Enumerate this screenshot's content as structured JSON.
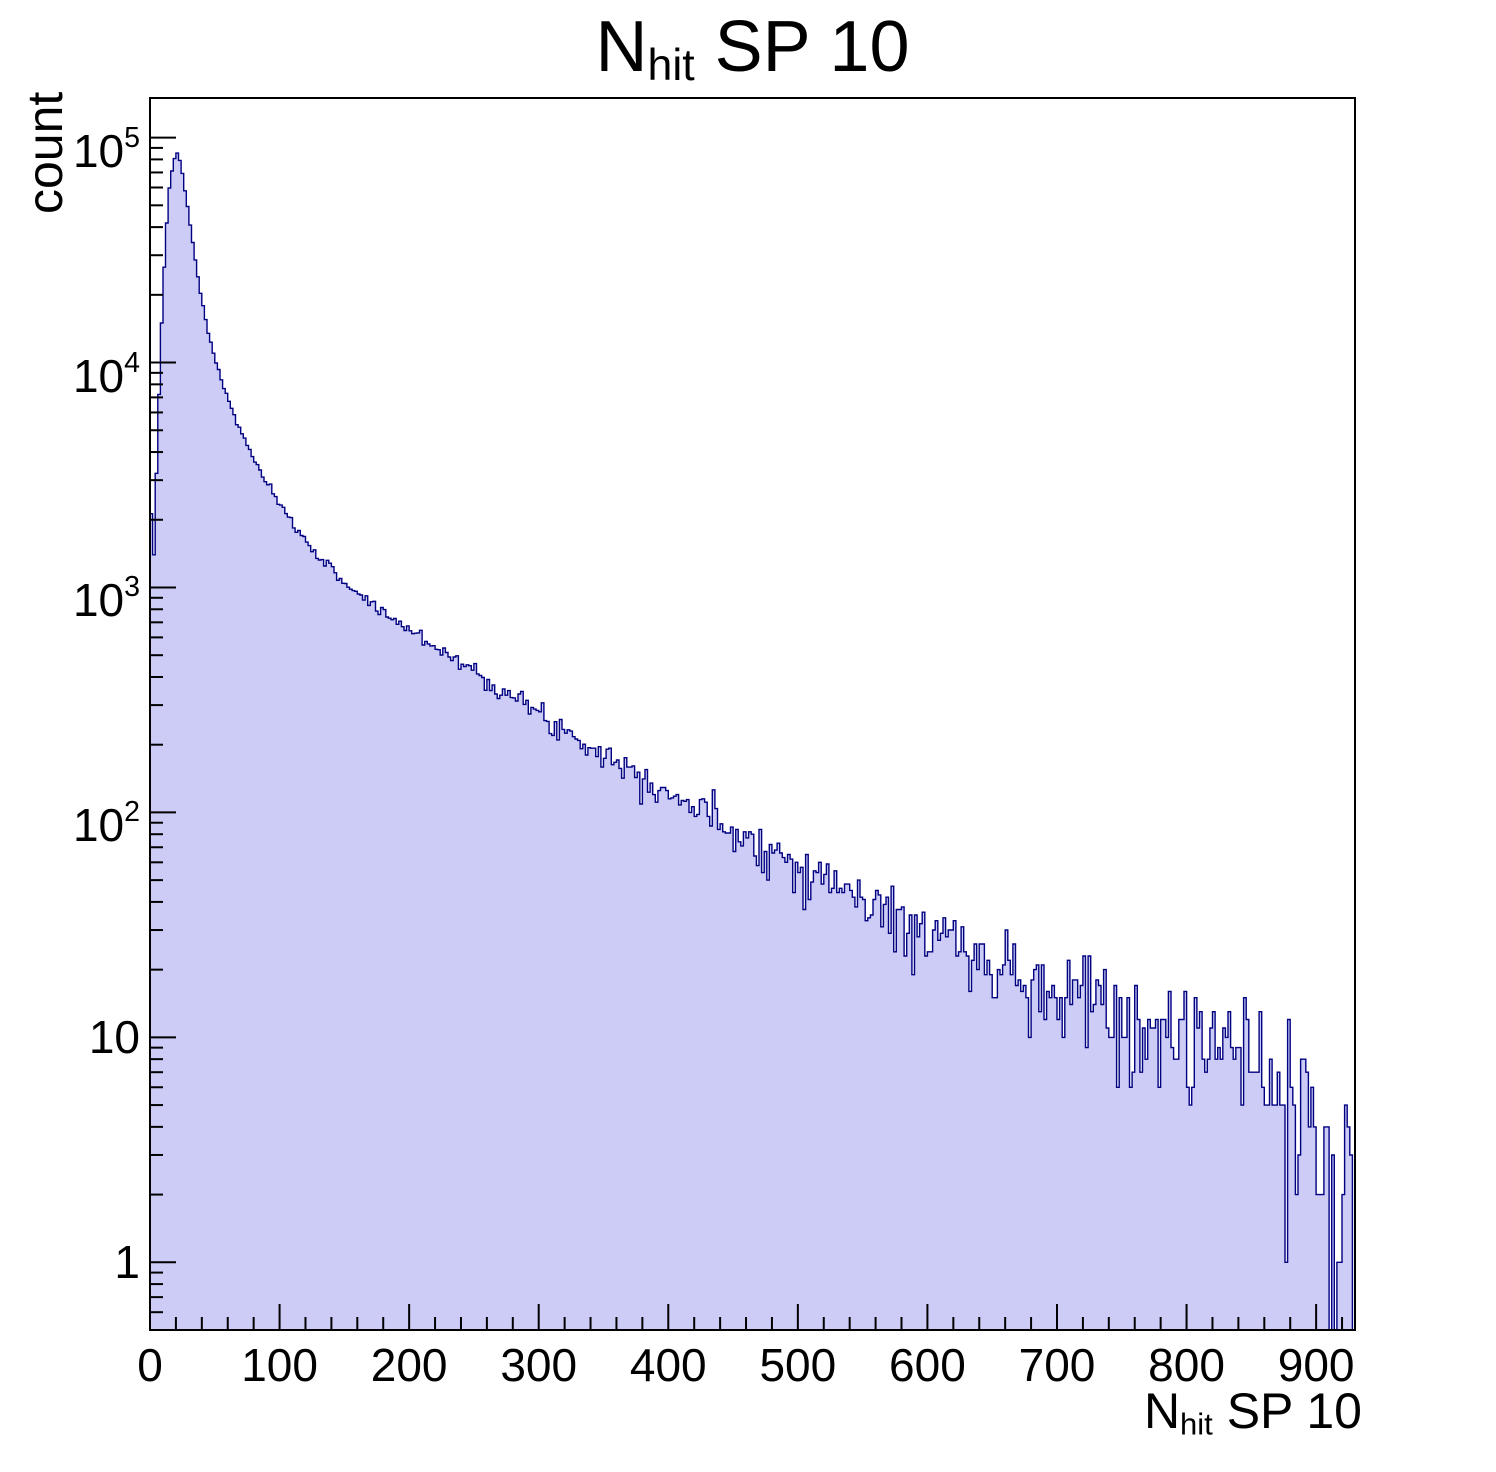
{
  "title": {
    "main": "N",
    "sub": "hit",
    "rest": " SP 10"
  },
  "x_label": {
    "main": "N",
    "sub": "hit",
    "rest": " SP 10"
  },
  "chart_data": {
    "type": "bar",
    "subtype": "histogram-log-y",
    "title": "N_hit SP 10",
    "xlabel": "N_hit SP 10",
    "ylabel": "count",
    "x_range": [
      0,
      930
    ],
    "y_range": [
      0.5,
      150000
    ],
    "y_scale": "log",
    "x_ticks": [
      0,
      100,
      200,
      300,
      400,
      500,
      600,
      700,
      800,
      900
    ],
    "x_minor_step": 20,
    "y_tick_exponents": [
      0,
      1,
      2,
      3,
      4,
      5
    ],
    "bin_width": 2,
    "noise_seed": 7,
    "fill_color": "#ccccf7",
    "line_color": "#000080",
    "axis_color": "#000000",
    "points": [
      [
        0,
        2400
      ],
      [
        3,
        1400
      ],
      [
        6,
        5000
      ],
      [
        9,
        15000
      ],
      [
        12,
        35000
      ],
      [
        15,
        60000
      ],
      [
        18,
        78000
      ],
      [
        21,
        85000
      ],
      [
        24,
        76000
      ],
      [
        27,
        58000
      ],
      [
        30,
        45000
      ],
      [
        34,
        31000
      ],
      [
        38,
        22000
      ],
      [
        42,
        16500
      ],
      [
        46,
        12800
      ],
      [
        50,
        10500
      ],
      [
        55,
        8400
      ],
      [
        60,
        6900
      ],
      [
        65,
        5800
      ],
      [
        70,
        4950
      ],
      [
        75,
        4300
      ],
      [
        80,
        3750
      ],
      [
        85,
        3300
      ],
      [
        90,
        2920
      ],
      [
        95,
        2600
      ],
      [
        100,
        2330
      ],
      [
        110,
        1920
      ],
      [
        120,
        1620
      ],
      [
        130,
        1390
      ],
      [
        140,
        1200
      ],
      [
        150,
        1060
      ],
      [
        160,
        945
      ],
      [
        170,
        855
      ],
      [
        180,
        775
      ],
      [
        190,
        710
      ],
      [
        200,
        650
      ],
      [
        210,
        598
      ],
      [
        220,
        550
      ],
      [
        230,
        506
      ],
      [
        240,
        464
      ],
      [
        250,
        425
      ],
      [
        260,
        390
      ],
      [
        270,
        358
      ],
      [
        280,
        328
      ],
      [
        290,
        300
      ],
      [
        300,
        274
      ],
      [
        310,
        252
      ],
      [
        320,
        233
      ],
      [
        330,
        215
      ],
      [
        340,
        199
      ],
      [
        350,
        184
      ],
      [
        360,
        170
      ],
      [
        370,
        158
      ],
      [
        380,
        146
      ],
      [
        390,
        135
      ],
      [
        400,
        124
      ],
      [
        410,
        114
      ],
      [
        420,
        106
      ],
      [
        430,
        98
      ],
      [
        440,
        91
      ],
      [
        450,
        85
      ],
      [
        460,
        79
      ],
      [
        470,
        73
      ],
      [
        480,
        68
      ],
      [
        490,
        63
      ],
      [
        500,
        59
      ],
      [
        510,
        55
      ],
      [
        520,
        51
      ],
      [
        530,
        47
      ],
      [
        540,
        44
      ],
      [
        550,
        41
      ],
      [
        560,
        38
      ],
      [
        570,
        35
      ],
      [
        580,
        33
      ],
      [
        590,
        31
      ],
      [
        600,
        29
      ],
      [
        620,
        26
      ],
      [
        640,
        23
      ],
      [
        660,
        21
      ],
      [
        680,
        19
      ],
      [
        700,
        17
      ],
      [
        720,
        15.5
      ],
      [
        740,
        14
      ],
      [
        760,
        12.5
      ],
      [
        780,
        11.5
      ],
      [
        800,
        10.5
      ],
      [
        820,
        9.5
      ],
      [
        840,
        8.5
      ],
      [
        860,
        7.5
      ],
      [
        880,
        6.5
      ],
      [
        895,
        5.5
      ],
      [
        905,
        3.2
      ],
      [
        915,
        1.6
      ],
      [
        925,
        1.1
      ],
      [
        930,
        1.5
      ]
    ]
  }
}
